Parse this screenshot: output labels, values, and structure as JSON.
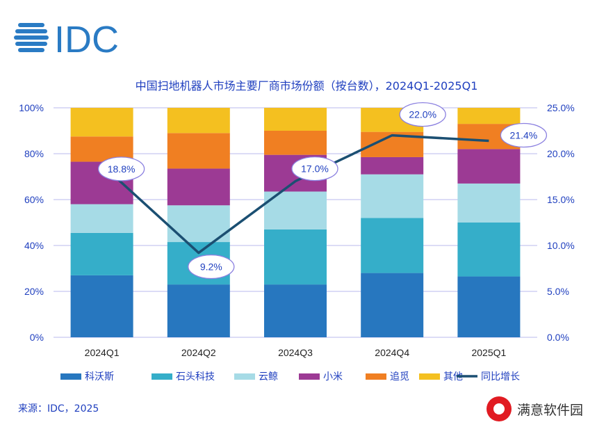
{
  "logo": {
    "text": "IDC",
    "color": "#2a7bc4"
  },
  "chart_data": {
    "type": "bar",
    "stacked": true,
    "title": "中国扫地机器人市场主要厂商市场份额（按台数），2024Q1-2025Q1",
    "categories": [
      "2024Q1",
      "2024Q2",
      "2024Q3",
      "2024Q4",
      "2025Q1"
    ],
    "ylim": [
      0,
      100
    ],
    "y_ticks": [
      "0%",
      "20%",
      "40%",
      "60%",
      "80%",
      "100%"
    ],
    "y2lim": [
      0,
      25
    ],
    "y2_ticks": [
      "0.0%",
      "5.0%",
      "10.0%",
      "15.0%",
      "20.0%",
      "25.0%"
    ],
    "legend_position": "bottom",
    "series": [
      {
        "name": "科沃斯",
        "color": "#2777bf",
        "values": [
          27,
          23,
          23,
          28,
          26.5
        ]
      },
      {
        "name": "石头科技",
        "color": "#35aec9",
        "values": [
          18.5,
          18.5,
          24,
          24,
          23.5
        ]
      },
      {
        "name": "云鲸",
        "color": "#a6dbe6",
        "values": [
          12.5,
          16,
          16.5,
          19,
          17
        ]
      },
      {
        "name": "小米",
        "color": "#9c3a94",
        "values": [
          18.5,
          16,
          16,
          7.5,
          15
        ]
      },
      {
        "name": "追觅",
        "color": "#f07f22",
        "values": [
          11,
          15.5,
          10.5,
          11,
          11
        ]
      },
      {
        "name": "其他",
        "color": "#f4c020",
        "values": [
          12.5,
          11,
          10,
          10.5,
          7
        ]
      }
    ],
    "line": {
      "name": "同比增长",
      "color": "#1b4f72",
      "values": [
        18.8,
        9.2,
        17.0,
        22.0,
        21.4
      ],
      "labels": [
        "18.8%",
        "9.2%",
        "17.0%",
        "22.0%",
        "21.4%"
      ]
    }
  },
  "source": "来源：IDC，2025",
  "watermark": "满意软件园"
}
